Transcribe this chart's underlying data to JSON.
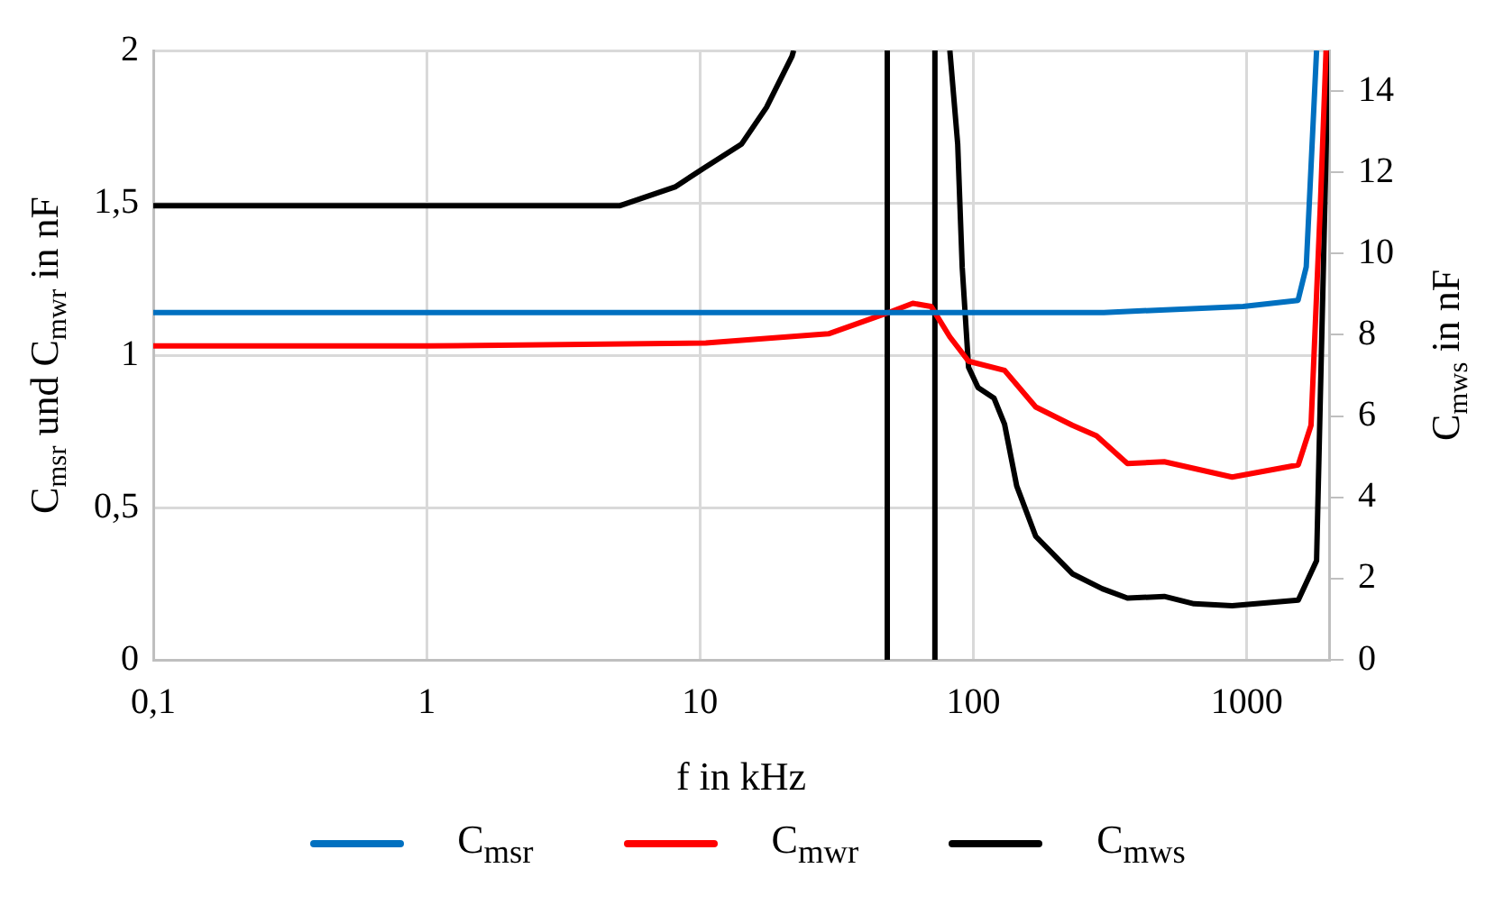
{
  "chart_data": {
    "type": "line",
    "xlabel": "f in kHz",
    "ylabel": "C$_{msr}$ und C$_{mwr}$ in nF",
    "y2label": "C$_{mws}$ in nF",
    "log": "x",
    "grid": true,
    "legend": "bottom",
    "marker": "none",
    "line_style": "solid",
    "xlim": [
      0.1,
      2000
    ],
    "xticks": [
      {
        "value": 0.1,
        "label": "0,1"
      },
      1,
      10,
      100,
      1000
    ],
    "ylim": [
      0,
      2
    ],
    "yticks": [
      0,
      {
        "value": 0.5,
        "label": "0,5"
      },
      1,
      {
        "value": 1.5,
        "label": "1,5"
      },
      2
    ],
    "y2lim": [
      0,
      15
    ],
    "y2ticks": [
      0,
      2,
      4,
      6,
      8,
      10,
      12,
      14
    ],
    "series": [
      {
        "name": "C$_{msr}$",
        "color": "#0070c0",
        "x": [
          0.1,
          1,
          10,
          100,
          300,
          970,
          1540,
          1650,
          1800
        ],
        "values": [
          1.14,
          1.14,
          1.14,
          1.14,
          1.14,
          1.16,
          1.18,
          1.29,
          2
        ]
      },
      {
        "name": "C$_{mwr}$",
        "color": "#ff0000",
        "x": [
          0.1,
          1,
          10.5,
          29.5,
          49,
          60,
          70,
          82,
          96,
          130,
          169,
          230,
          282,
          366,
          499,
          884,
          1543,
          1718,
          1860,
          1950
        ],
        "values": [
          1.03,
          1.03,
          1.04,
          1.07,
          1.14,
          1.17,
          1.16,
          1.06,
          0.98,
          0.95,
          0.83,
          0.77,
          0.735,
          0.644,
          0.65,
          0.6,
          0.64,
          0.77,
          1.5,
          2
        ]
      },
      {
        "name": "C$_{mws}$",
        "color": "#000000",
        "axis": "y2",
        "x": [
          0.1,
          1,
          5.1,
          8.1,
          10.3,
          14.2,
          17.5,
          21.7,
          22
        ],
        "values": [
          11.18,
          11.18,
          11.18,
          11.64,
          12.1,
          12.7,
          13.6,
          14.86,
          15
        ]
      },
      {
        "color": "#000000",
        "axis": "y2",
        "x": [
          48.4,
          48.4
        ],
        "values": [
          15,
          0
        ]
      },
      {
        "color": "#000000",
        "axis": "y2",
        "x": [
          72.3,
          72.3
        ],
        "values": [
          0,
          15
        ]
      },
      {
        "color": "#000000",
        "axis": "y2",
        "x": [
          82,
          87.6,
          91,
          96,
          104,
          119,
          130,
          144,
          169,
          230,
          296,
          366,
          499,
          641,
          884,
          1543,
          1800,
          1860,
          1990
        ],
        "values": [
          15,
          12.7,
          9.66,
          7.2,
          6.7,
          6.44,
          5.8,
          4.28,
          3.04,
          2.12,
          1.75,
          1.52,
          1.56,
          1.38,
          1.33,
          1.47,
          2.44,
          6.6,
          15
        ]
      }
    ]
  }
}
